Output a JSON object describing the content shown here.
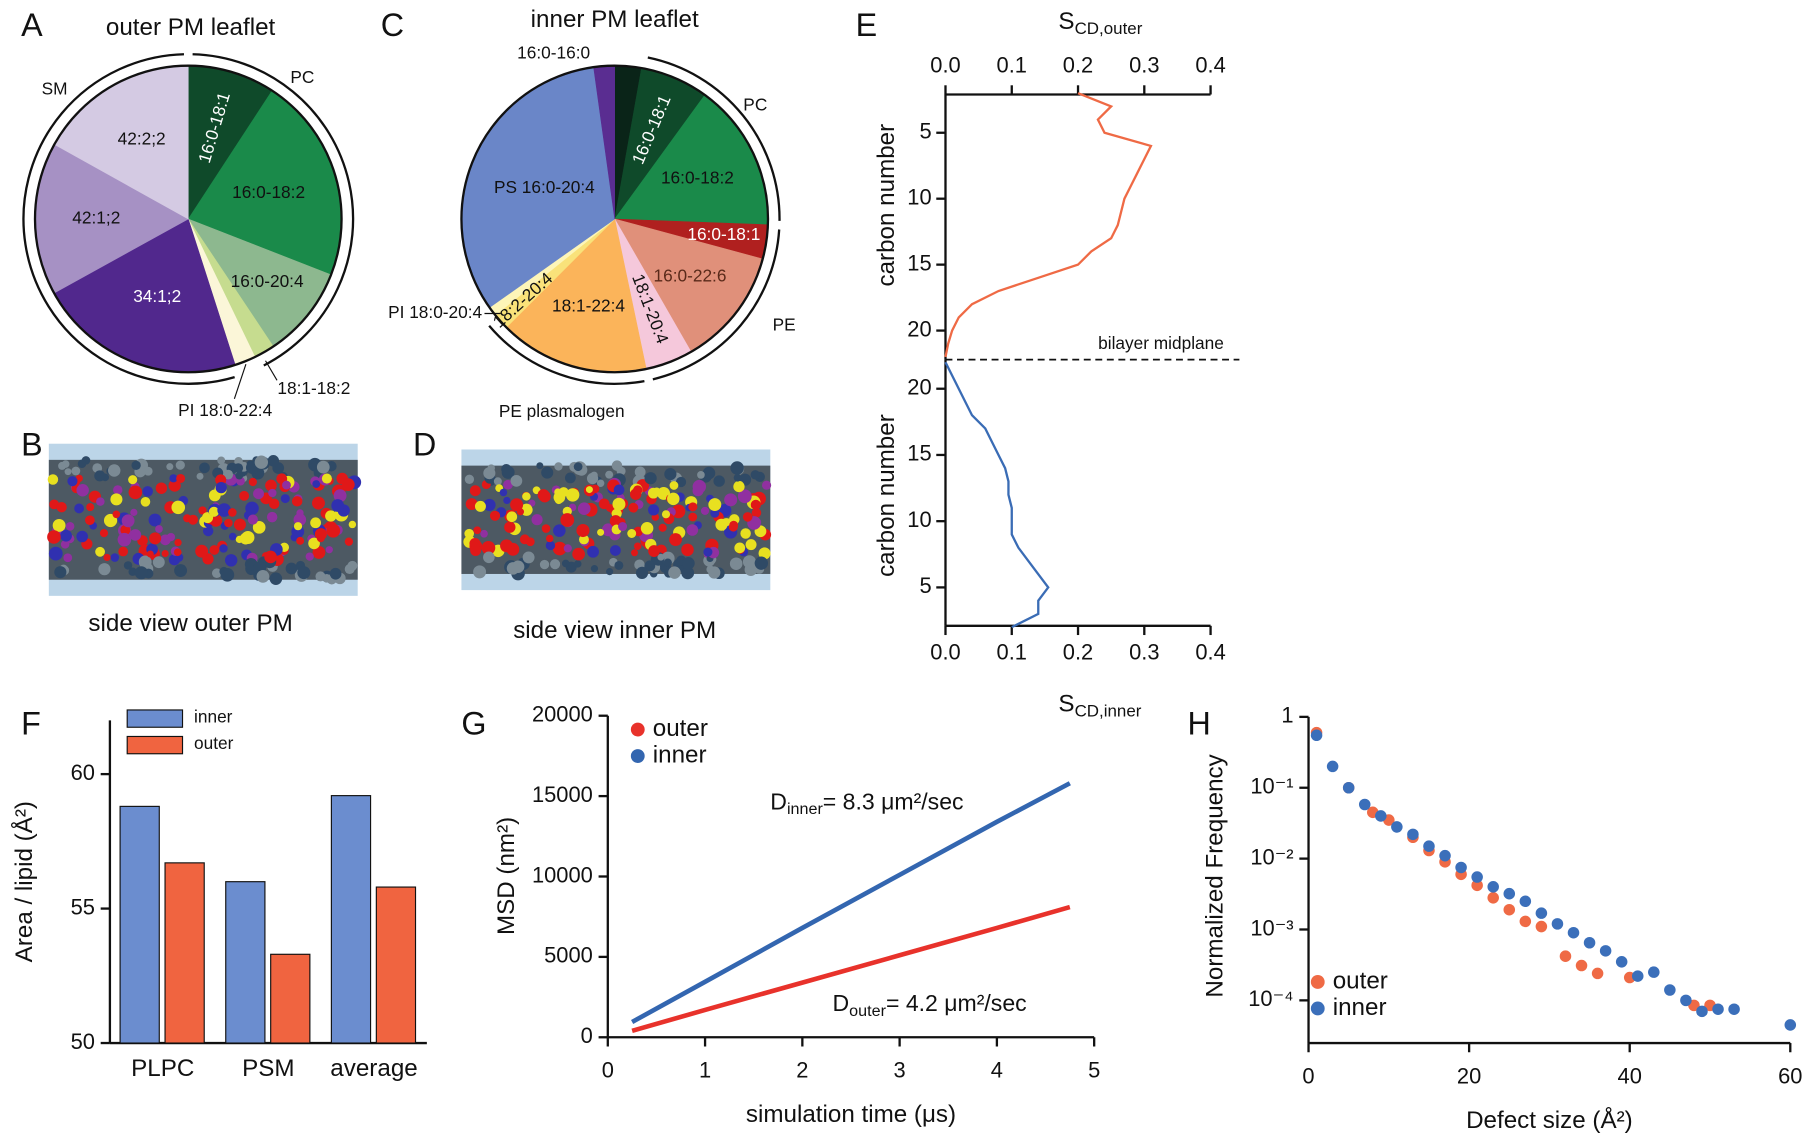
{
  "panel_labels": [
    "A",
    "B",
    "C",
    "D",
    "E",
    "F",
    "G",
    "H"
  ],
  "images": [
    {
      "caption": "side view outer PM"
    },
    {
      "caption": "side view inner PM"
    }
  ],
  "chart_data": [
    {
      "type": "pie",
      "title": "outer PM leaflet",
      "categories": [
        "16:0-18:1",
        "16:0-18:2",
        "16:0-20:4",
        "18:1-18:2",
        "PI 18:0-22:4",
        "34:1;2",
        "42:1;2",
        "42:2;2"
      ],
      "values": [
        9.2,
        21.7,
        9.7,
        2.2,
        2.2,
        21.9,
        16.1,
        16.9
      ],
      "colors": [
        "#0f4a2a",
        "#1a8a4a",
        "#8db88f",
        "#c6dc8f",
        "#fbf6d8",
        "#51288d",
        "#a691c4",
        "#d4cae3"
      ],
      "annotations": [
        "PC",
        "SM"
      ]
    },
    {
      "type": "pie",
      "title": "inner PM leaflet",
      "categories": [
        "16:0-16:0",
        "16:0-18:1",
        "16:0-18:2",
        "16:0-18:1",
        "16:0-22:6",
        "18:1-20:4",
        "18:1-22:4",
        "18:2-20:4",
        "PI 18:0-20:4",
        "PS 16:0-20:4",
        null
      ],
      "values": [
        2.8,
        7.2,
        15.6,
        3.6,
        12.5,
        5.0,
        15.8,
        1.7,
        1.0,
        32.6,
        2.2
      ],
      "colors": [
        "#0a2418",
        "#0f4a2a",
        "#1a8a4a",
        "#b0201f",
        "#e0907a",
        "#f5c8db",
        "#fbb45a",
        "#f9e27a",
        "#fdf5b8",
        "#6a86c8",
        "#5a2d91"
      ],
      "annotations": [
        "PC",
        "PE",
        "PE plasmalogen"
      ]
    },
    {
      "type": "line",
      "xlabel": {
        "text": "S",
        "subscript": "CD,outer"
      },
      "ylabel": "carbon number",
      "xlim": [
        0,
        0.4
      ],
      "xticks": [
        {
          "value": 0,
          "label": "0.0"
        },
        0.1,
        0.2,
        0.3,
        0.4
      ],
      "ylim": [
        2.1,
        22.2
      ],
      "yticks": [
        5,
        10,
        15,
        20
      ],
      "color": "#ef6a45",
      "carbon": [
        2,
        3,
        4,
        5,
        6,
        7,
        8,
        9,
        10,
        11,
        12,
        13,
        14,
        15,
        16,
        17,
        18,
        19,
        20,
        21,
        22
      ],
      "values": [
        0.2,
        0.25,
        0.23,
        0.24,
        0.31,
        0.3,
        0.29,
        0.28,
        0.27,
        0.265,
        0.26,
        0.25,
        0.22,
        0.2,
        0.14,
        0.08,
        0.04,
        0.02,
        0.01,
        0.004,
        0
      ],
      "annotation": "bilayer midplane"
    },
    {
      "type": "line",
      "xlabel": {
        "text": "S",
        "subscript": "CD,inner"
      },
      "ylabel": "carbon number",
      "xlim": [
        0,
        0.4
      ],
      "xticks": [
        {
          "value": 0,
          "label": "0.0"
        },
        0.1,
        0.2,
        0.3,
        0.4
      ],
      "ylim": [
        2.1,
        22.2
      ],
      "yticks": [
        5,
        10,
        15,
        20
      ],
      "color": "#3a6cb5",
      "carbon": [
        2,
        3,
        4,
        5,
        6,
        7,
        8,
        9,
        10,
        11,
        12,
        13,
        14,
        15,
        16,
        17,
        18,
        19,
        20,
        21,
        22
      ],
      "values": [
        0.1,
        0.14,
        0.14,
        0.155,
        0.14,
        0.125,
        0.11,
        0.1,
        0.1,
        0.1,
        0.095,
        0.095,
        0.09,
        0.08,
        0.07,
        0.06,
        0.04,
        0.03,
        0.02,
        0.01,
        0
      ]
    },
    {
      "type": "bar",
      "ylabel": "Area / lipid (Å²)",
      "categories": [
        "PLPC",
        "PSM",
        "average"
      ],
      "series": [
        {
          "name": "inner",
          "color": "#6b8dcf",
          "values": [
            58.8,
            56.0,
            59.2
          ]
        },
        {
          "name": "outer",
          "color": "#f06440",
          "values": [
            56.7,
            53.3,
            55.8
          ]
        }
      ],
      "ylim": [
        50,
        62
      ],
      "yticks": [
        50,
        55,
        60
      ]
    },
    {
      "type": "line",
      "xlabel": "simulation time (μs)",
      "ylabel": "MSD (nm²)",
      "x": [
        0.25,
        1,
        2,
        3,
        4,
        4.75
      ],
      "series": [
        {
          "name": "outer",
          "color": "#e8322b",
          "values": [
            400,
            1700,
            3400,
            5100,
            6800,
            8100
          ]
        },
        {
          "name": "inner",
          "color": "#3366b0",
          "values": [
            950,
            3450,
            6800,
            10100,
            13400,
            15800
          ]
        }
      ],
      "xlim": [
        0,
        5
      ],
      "xticks": [
        0,
        1,
        2,
        3,
        4,
        5
      ],
      "ylim": [
        0,
        20000
      ],
      "yticks": [
        0,
        5000,
        10000,
        15000,
        20000
      ],
      "annotations": [
        {
          "text": "D",
          "subscript": "inner",
          "rest": "= 8.3 μm²/sec"
        },
        {
          "text": "D",
          "subscript": "outer",
          "rest": "= 4.2 μm²/sec"
        }
      ]
    },
    {
      "type": "scatter",
      "xlabel": "Defect size (Å²)",
      "ylabel": "Normalized Frequency",
      "yscale": "log",
      "xlim": [
        0,
        60
      ],
      "xticks": [
        0,
        20,
        40,
        60
      ],
      "ylim": [
        2.5e-05,
        1
      ],
      "yticks": [
        1,
        {
          "value": 0.1,
          "label": "10⁻¹"
        },
        {
          "value": 0.01,
          "label": "10⁻²"
        },
        {
          "value": 0.001,
          "label": "10⁻³"
        },
        {
          "value": 0.0001,
          "label": "10⁻⁴"
        }
      ],
      "series": [
        {
          "name": "outer",
          "color": "#ef6a45",
          "x": [
            1,
            5,
            8,
            10,
            13,
            15,
            17,
            19,
            21,
            23,
            25,
            27,
            29,
            32,
            34,
            36,
            40,
            48,
            50
          ],
          "values": [
            0.6,
            0.1,
            0.045,
            0.035,
            0.02,
            0.013,
            0.009,
            0.006,
            0.0042,
            0.0028,
            0.0019,
            0.0013,
            0.0011,
            0.00042,
            0.00031,
            0.00024,
            0.00021,
            8.5e-05,
            8.5e-05
          ]
        },
        {
          "name": "inner",
          "color": "#3b6fba",
          "x": [
            1,
            3,
            5,
            7,
            9,
            11,
            13,
            15,
            17,
            19,
            21,
            23,
            25,
            27,
            29,
            31,
            33,
            35,
            37,
            39,
            41,
            43,
            45,
            47,
            49,
            51,
            53,
            60
          ],
          "values": [
            0.55,
            0.2,
            0.1,
            0.058,
            0.04,
            0.028,
            0.022,
            0.015,
            0.011,
            0.0075,
            0.0055,
            0.004,
            0.0032,
            0.0025,
            0.0017,
            0.0012,
            0.0009,
            0.00065,
            0.0005,
            0.00035,
            0.00022,
            0.00025,
            0.00014,
            0.0001,
            7e-05,
            7.5e-05,
            7.5e-05,
            4.5e-05
          ]
        }
      ]
    }
  ]
}
